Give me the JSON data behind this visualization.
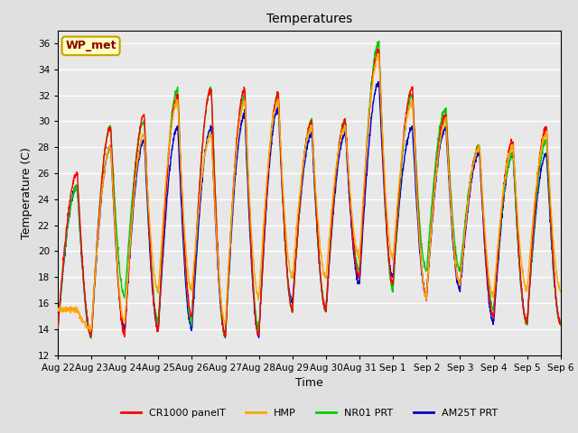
{
  "title": "Temperatures",
  "xlabel": "Time",
  "ylabel": "Temperature (C)",
  "ylim": [
    12,
    37
  ],
  "yticks": [
    12,
    14,
    16,
    18,
    20,
    22,
    24,
    26,
    28,
    30,
    32,
    34,
    36
  ],
  "x_labels": [
    "Aug 22",
    "Aug 23",
    "Aug 24",
    "Aug 25",
    "Aug 26",
    "Aug 27",
    "Aug 28",
    "Aug 29",
    "Aug 30",
    "Aug 31",
    "Sep 1",
    "Sep 2",
    "Sep 3",
    "Sep 4",
    "Sep 5",
    "Sep 6"
  ],
  "annotation_text": "WP_met",
  "annotation_color": "#8B0000",
  "annotation_bg": "#FFFFC0",
  "annotation_border": "#C8A000",
  "colors": {
    "CR1000 panelT": "#FF0000",
    "HMP": "#FFA500",
    "NR01 PRT": "#00CC00",
    "AM25T PRT": "#0000CC"
  },
  "bg_color": "#E8E8E8",
  "grid_color": "#FFFFFF",
  "legend_labels": [
    "CR1000 panelT",
    "HMP",
    "NR01 PRT",
    "AM25T PRT"
  ],
  "peaks_cr": [
    26.0,
    29.5,
    30.5,
    32.0,
    32.5,
    32.5,
    32.0,
    30.0,
    30.0,
    35.5,
    32.5,
    30.5,
    28.0,
    28.5,
    29.5
  ],
  "mins_cr": [
    14.0,
    13.5,
    13.5,
    14.0,
    15.0,
    13.5,
    13.5,
    15.5,
    15.5,
    18.0,
    17.5,
    16.5,
    17.5,
    15.0,
    14.5
  ],
  "peaks_hmp": [
    15.5,
    28.0,
    29.0,
    31.5,
    29.0,
    31.5,
    31.5,
    29.5,
    29.5,
    35.0,
    31.5,
    30.0,
    28.0,
    28.0,
    29.0
  ],
  "mins_hmp": [
    15.5,
    14.0,
    14.5,
    17.0,
    17.0,
    14.5,
    16.5,
    18.0,
    18.0,
    19.5,
    19.5,
    16.5,
    17.5,
    16.5,
    17.0
  ],
  "peaks_nr": [
    25.0,
    29.5,
    30.0,
    32.5,
    32.5,
    32.0,
    32.0,
    30.0,
    30.0,
    36.0,
    32.0,
    31.0,
    28.0,
    27.5,
    28.5
  ],
  "mins_nr": [
    14.0,
    13.5,
    16.5,
    14.5,
    14.5,
    13.5,
    14.0,
    15.5,
    15.5,
    18.5,
    17.0,
    18.5,
    18.5,
    15.5,
    14.5
  ],
  "peaks_am": [
    25.0,
    28.0,
    28.5,
    29.5,
    29.5,
    30.5,
    31.0,
    29.0,
    29.0,
    33.0,
    29.5,
    29.5,
    27.5,
    27.5,
    27.5
  ],
  "mins_am": [
    14.0,
    13.5,
    14.0,
    14.0,
    14.0,
    13.5,
    13.5,
    16.0,
    15.5,
    17.5,
    18.0,
    16.5,
    17.0,
    14.5,
    14.5
  ]
}
